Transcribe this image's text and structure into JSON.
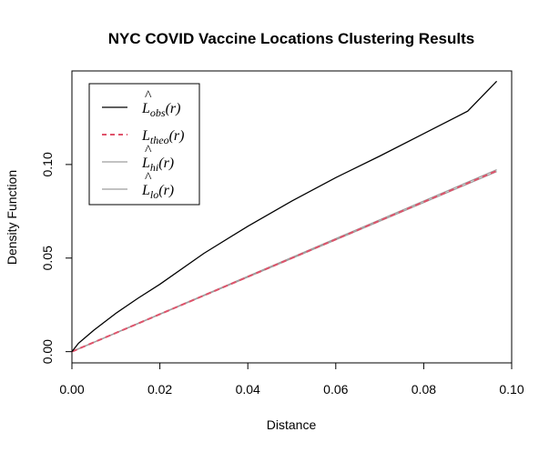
{
  "chart_data": {
    "type": "line",
    "title": "NYC COVID Vaccine Locations Clustering Results",
    "xlabel": "Distance",
    "ylabel": "Density Function",
    "xlim": [
      0.0,
      0.1
    ],
    "ylim": [
      -0.006,
      0.15
    ],
    "x_ticks": [
      0.0,
      0.02,
      0.04,
      0.06,
      0.08,
      0.1
    ],
    "x_tick_labels": [
      "0.00",
      "0.02",
      "0.04",
      "0.06",
      "0.08",
      "0.10"
    ],
    "y_ticks": [
      0.0,
      0.05,
      0.1
    ],
    "y_tick_labels": [
      "0.00",
      "0.05",
      "0.10"
    ],
    "grid": false,
    "legend_position": "top-left",
    "series": [
      {
        "name": "L̂obs(r)",
        "legend_main": "L",
        "legend_hat": "^",
        "legend_sub": "obs",
        "legend_tail": "(r)",
        "color": "#000000",
        "dash": "solid",
        "x": [
          0.0,
          0.0015,
          0.003,
          0.005,
          0.0075,
          0.01,
          0.015,
          0.02,
          0.03,
          0.04,
          0.05,
          0.06,
          0.07,
          0.08,
          0.09,
          0.0966
        ],
        "y": [
          0.0,
          0.0045,
          0.0075,
          0.0115,
          0.016,
          0.0205,
          0.0285,
          0.036,
          0.0525,
          0.067,
          0.0805,
          0.093,
          0.1045,
          0.1165,
          0.1285,
          0.1445
        ]
      },
      {
        "name": "Ltheo(r)",
        "legend_main": "L",
        "legend_hat": "",
        "legend_sub": "theo",
        "legend_tail": "(r)",
        "color": "#df536b",
        "dash": "dashed",
        "x": [
          0.0,
          0.0966
        ],
        "y": [
          0.0,
          0.0966
        ]
      },
      {
        "name": "L̂hi(r)",
        "legend_main": "L",
        "legend_hat": "^",
        "legend_sub": "hi",
        "legend_tail": "(r)",
        "color": "#9e9e9e",
        "dash": "solid",
        "x": [
          0.0,
          0.0966
        ],
        "y": [
          0.0,
          0.0972
        ]
      },
      {
        "name": "L̂lo(r)",
        "legend_main": "L",
        "legend_hat": "^",
        "legend_sub": "lo",
        "legend_tail": "(r)",
        "color": "#9e9e9e",
        "dash": "solid",
        "x": [
          0.0,
          0.0966
        ],
        "y": [
          0.0,
          0.0962
        ]
      }
    ]
  }
}
